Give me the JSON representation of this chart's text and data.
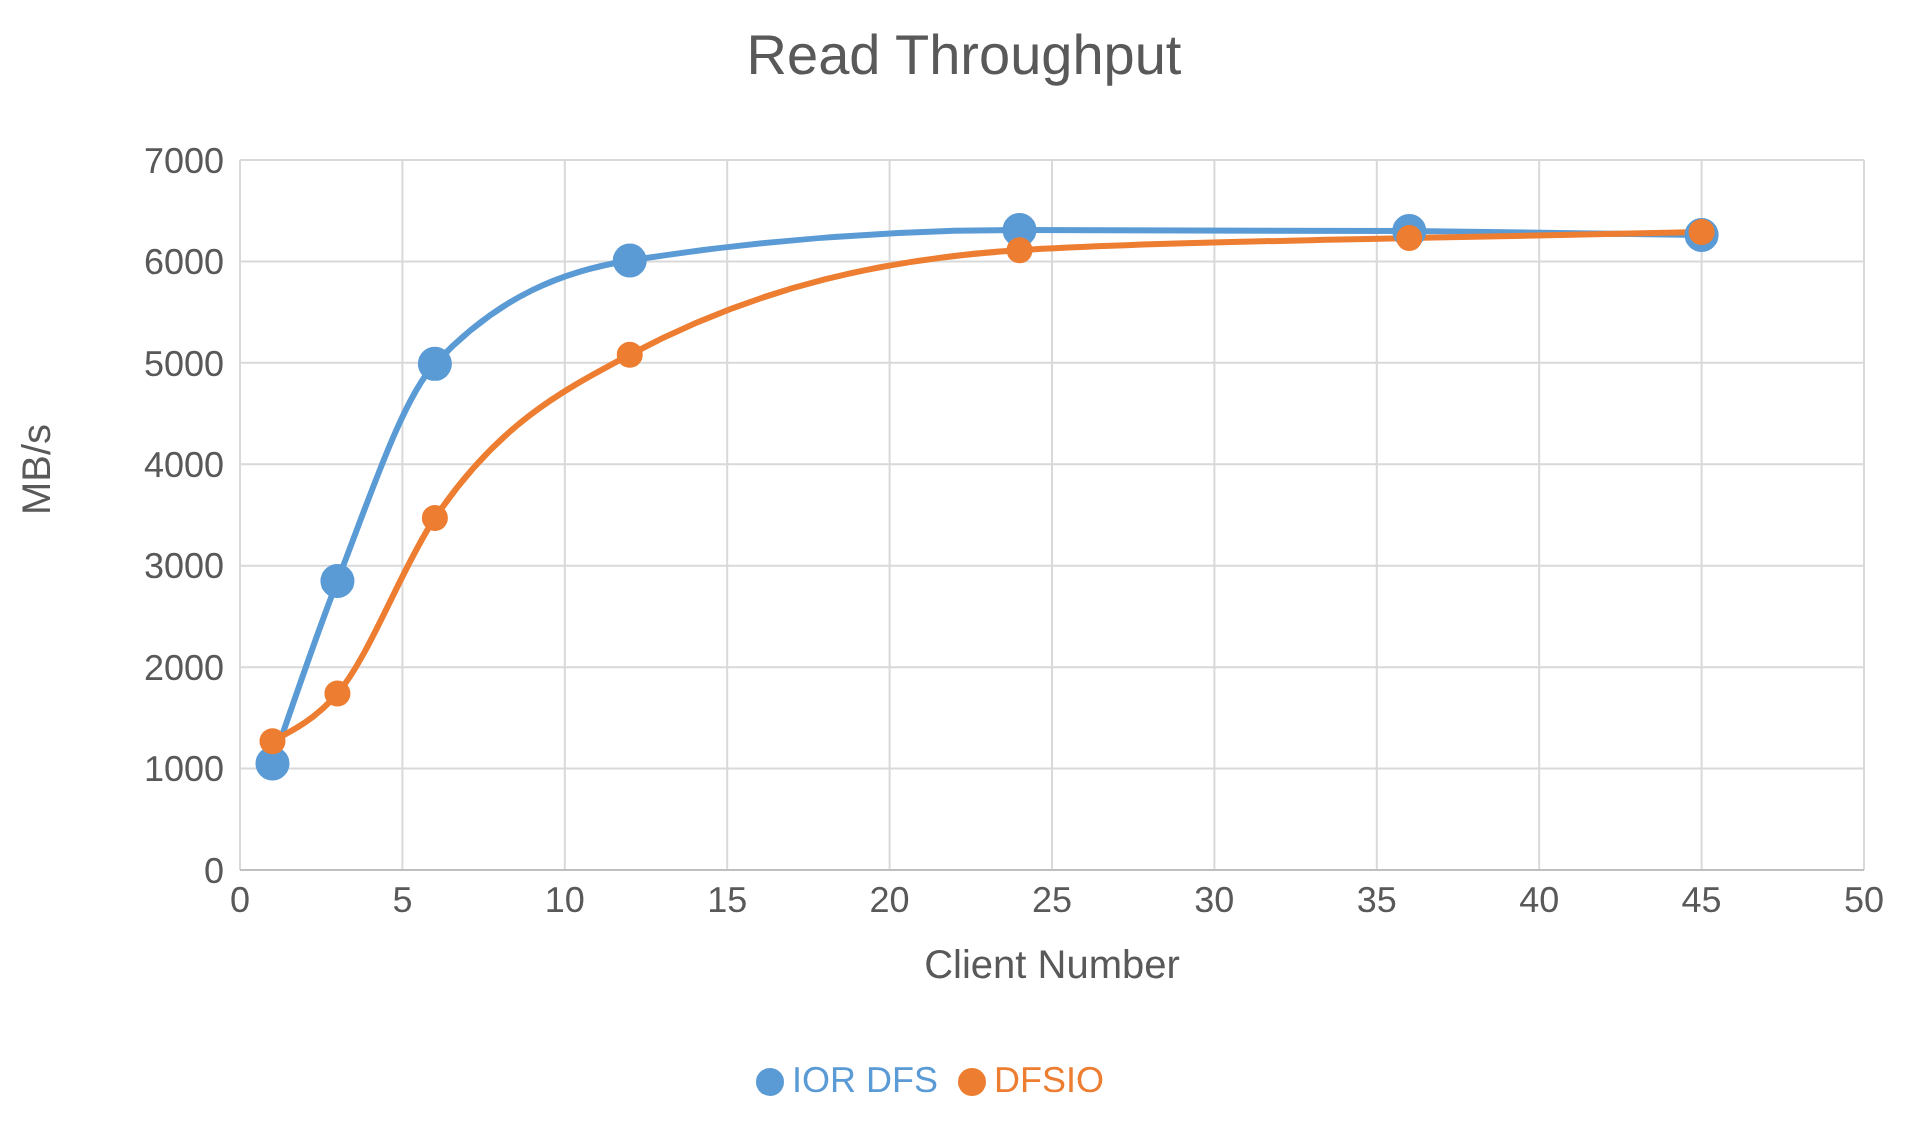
{
  "chart_data": {
    "type": "line",
    "title": "Read Throughput",
    "xlabel": "Client Number",
    "ylabel": "MB/s",
    "x": [
      1,
      3,
      6,
      12,
      24,
      36,
      45
    ],
    "series": [
      {
        "name": "IOR DFS",
        "color": "#5b9bd5",
        "values": [
          1050,
          2850,
          4990,
          6010,
          6310,
          6300,
          6260
        ]
      },
      {
        "name": "DFSIO",
        "color": "#ed7d31",
        "values": [
          1270,
          1740,
          3470,
          5080,
          6110,
          6230,
          6290
        ]
      }
    ],
    "xlim": [
      0,
      50
    ],
    "xticks": [
      0,
      5,
      10,
      15,
      20,
      25,
      30,
      35,
      40,
      45,
      50
    ],
    "ylim": [
      0,
      7000
    ],
    "yticks": [
      0,
      1000,
      2000,
      3000,
      4000,
      5000,
      6000,
      7000
    ],
    "grid": true,
    "legend": "bottom",
    "marker": "circle",
    "line_style": "solid"
  }
}
